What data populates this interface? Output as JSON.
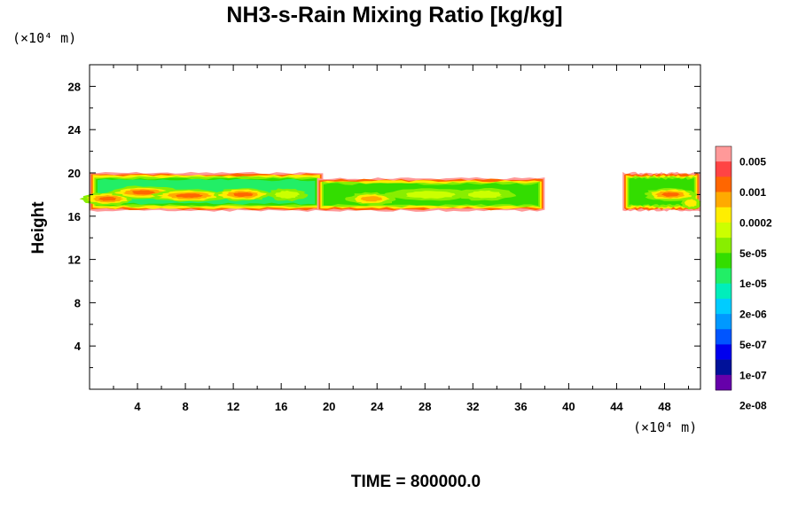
{
  "chart_data": {
    "type": "heatmap",
    "title": "NH3-s-Rain Mixing Ratio [kg/kg]",
    "ylabel": "Height",
    "x_unit": "(×10⁴ m)",
    "y_unit": "(×10⁴ m)",
    "xlim": [
      0,
      51
    ],
    "ylim": [
      0,
      30
    ],
    "x_ticks": [
      4,
      8,
      12,
      16,
      20,
      24,
      28,
      32,
      36,
      40,
      44,
      48
    ],
    "y_ticks": [
      4,
      8,
      12,
      16,
      20,
      24,
      28
    ],
    "time_label": "TIME = 800000.0",
    "colorbar": {
      "labels": [
        "0.005",
        "0.001",
        "0.0002",
        "5e-05",
        "1e-05",
        "2e-06",
        "5e-07",
        "1e-07",
        "2e-08"
      ],
      "colors": [
        "#ff9999",
        "#ff4444",
        "#ff6600",
        "#ffaa00",
        "#ffee00",
        "#ccff00",
        "#88ee00",
        "#33dd00",
        "#22ee66",
        "#00eebb",
        "#00ccff",
        "#0099ff",
        "#0055ff",
        "#0000ee",
        "#001199",
        "#6600aa"
      ]
    },
    "features": [
      {
        "name": "band-west",
        "x0": 0,
        "x1": 19.5,
        "ybot": 16.5,
        "ytop": 20.0
      },
      {
        "name": "band-middle",
        "x0": 19.0,
        "x1": 38.0,
        "ybot": 16.5,
        "ytop": 19.5
      },
      {
        "name": "band-east",
        "x0": 44.5,
        "x1": 51,
        "ybot": 16.5,
        "ytop": 20.0
      }
    ]
  }
}
